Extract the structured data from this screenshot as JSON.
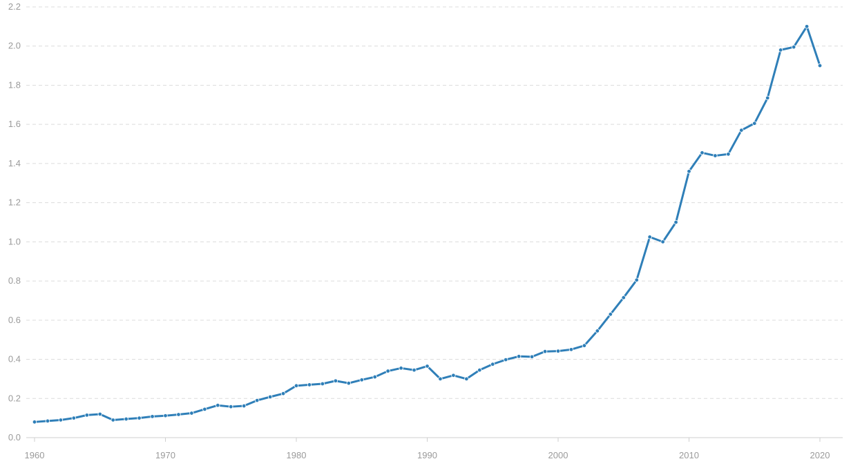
{
  "chart_data": {
    "type": "line",
    "title": "",
    "xlabel": "",
    "ylabel": "",
    "xlim": [
      1960,
      2020
    ],
    "ylim": [
      0,
      2.2
    ],
    "grid": true,
    "x_ticks": [
      "1960",
      "1970",
      "1980",
      "1990",
      "2000",
      "2010",
      "2020"
    ],
    "y_ticks": [
      "0.0",
      "0.2",
      "0.4",
      "0.6",
      "0.8",
      "1.0",
      "1.2",
      "1.4",
      "1.6",
      "1.8",
      "2.0",
      "2.2"
    ],
    "line_color": "#2f7fb8",
    "series": [
      {
        "x": [
          1960,
          1961,
          1962,
          1963,
          1964,
          1965,
          1966,
          1967,
          1968,
          1969,
          1970,
          1971,
          1972,
          1973,
          1974,
          1975,
          1976,
          1977,
          1978,
          1979,
          1980,
          1981,
          1982,
          1983,
          1984,
          1985,
          1986,
          1987,
          1988,
          1989,
          1990,
          1991,
          1992,
          1993,
          1994,
          1995,
          1996,
          1997,
          1998,
          1999,
          2000,
          2001,
          2002,
          2003,
          2004,
          2005,
          2006,
          2007,
          2008,
          2009,
          2010,
          2011,
          2012,
          2013,
          2014,
          2015,
          2016,
          2017,
          2018,
          2019,
          2020
        ],
        "values": [
          0.08,
          0.085,
          0.09,
          0.1,
          0.115,
          0.12,
          0.09,
          0.095,
          0.1,
          0.108,
          0.112,
          0.118,
          0.125,
          0.145,
          0.165,
          0.158,
          0.162,
          0.19,
          0.208,
          0.225,
          0.265,
          0.27,
          0.275,
          0.29,
          0.278,
          0.295,
          0.31,
          0.34,
          0.355,
          0.345,
          0.365,
          0.3,
          0.318,
          0.3,
          0.345,
          0.375,
          0.398,
          0.415,
          0.413,
          0.44,
          0.442,
          0.45,
          0.47,
          0.545,
          0.63,
          0.715,
          0.805,
          1.025,
          1.0,
          1.1,
          1.36,
          1.455,
          1.44,
          1.448,
          1.57,
          1.605,
          1.735,
          1.98,
          1.995,
          2.1,
          1.9
        ]
      }
    ]
  }
}
